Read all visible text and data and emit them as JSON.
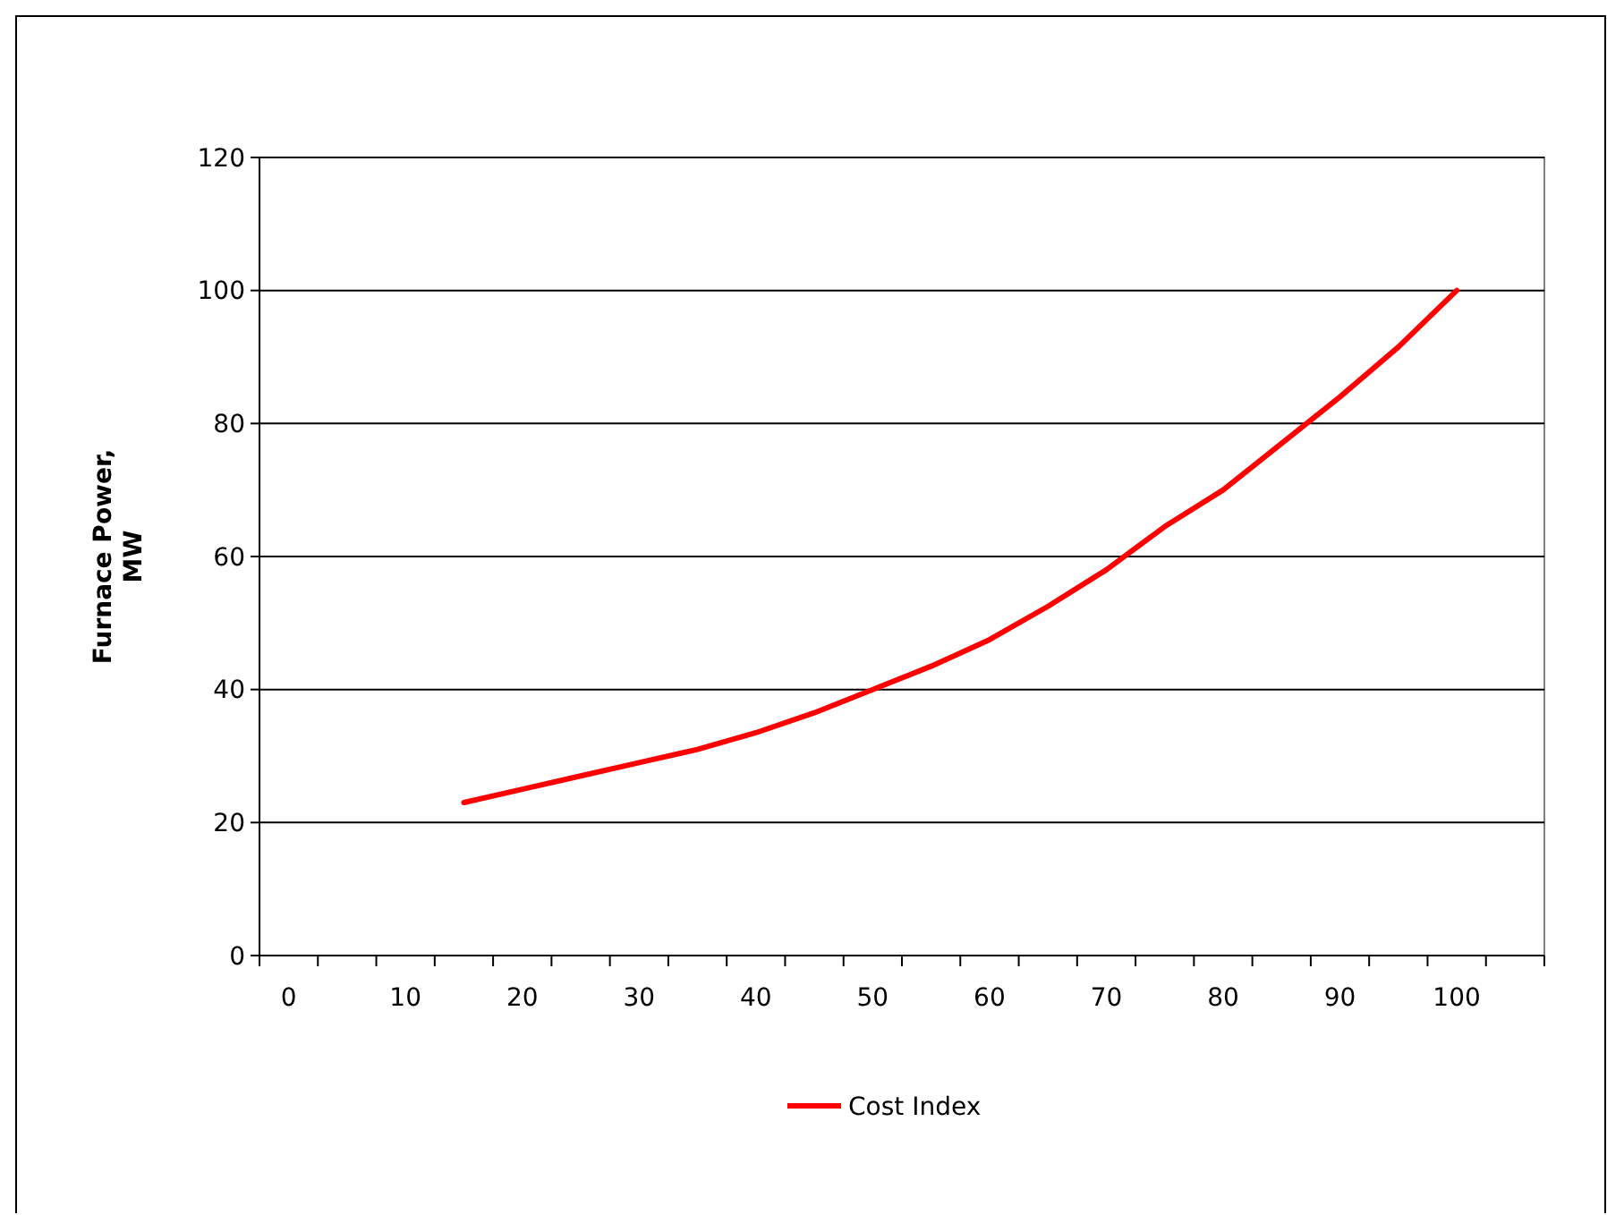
{
  "chart_data": {
    "type": "line",
    "ylabel": "Furnace Power, MW",
    "categories": [
      "0",
      null,
      "10",
      null,
      "20",
      null,
      "30",
      null,
      "40",
      null,
      "50",
      null,
      "60",
      null,
      "70",
      null,
      "80",
      null,
      "90",
      null,
      "100",
      null
    ],
    "series": [
      {
        "name": "Cost Index",
        "color": "#ff0000",
        "values": [
          null,
          null,
          null,
          23,
          25,
          27,
          29,
          31,
          33.5,
          36.5,
          40,
          43.5,
          47.5,
          52.5,
          58,
          64.5,
          70,
          77,
          84,
          91.5,
          100,
          null
        ]
      }
    ],
    "ylim": [
      0,
      120
    ],
    "yticks": [
      0,
      20,
      40,
      60,
      80,
      100,
      120
    ],
    "grid": "y",
    "legend": "bottom",
    "marker": "none",
    "line_style": "solid"
  }
}
